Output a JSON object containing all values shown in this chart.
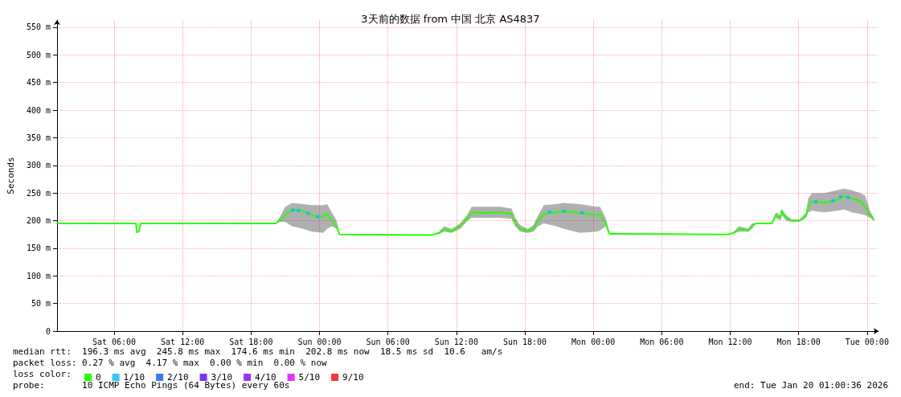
{
  "chart_data": {
    "type": "line",
    "title": "3天前的数据 from 中国 北京 AS4837",
    "ylabel": "Seconds",
    "legend_title": "loss color:",
    "legend": "bottom left",
    "grid": true,
    "marker": "none",
    "xlim": [
      "2026-01-17T01:00",
      "2026-01-20T01:00"
    ],
    "xticks": [
      {
        "value": "2026-01-17T06:00",
        "label": "Sat 06:00"
      },
      {
        "value": "2026-01-17T12:00",
        "label": "Sat 12:00"
      },
      {
        "value": "2026-01-17T18:00",
        "label": "Sat 18:00"
      },
      {
        "value": "2026-01-18T00:00",
        "label": "Sun 00:00"
      },
      {
        "value": "2026-01-18T06:00",
        "label": "Sun 06:00"
      },
      {
        "value": "2026-01-18T12:00",
        "label": "Sun 12:00"
      },
      {
        "value": "2026-01-18T18:00",
        "label": "Sun 18:00"
      },
      {
        "value": "2026-01-19T00:00",
        "label": "Mon 00:00"
      },
      {
        "value": "2026-01-19T06:00",
        "label": "Mon 06:00"
      },
      {
        "value": "2026-01-19T12:00",
        "label": "Mon 12:00"
      },
      {
        "value": "2026-01-19T18:00",
        "label": "Mon 18:00"
      },
      {
        "value": "2026-01-20T00:00",
        "label": "Tue 00:00"
      }
    ],
    "ylim": [
      0,
      563
    ],
    "yticks": [
      0,
      {
        "value": 50,
        "label": "50 m"
      },
      {
        "value": 100,
        "label": "100 m"
      },
      {
        "value": 150,
        "label": "150 m"
      },
      {
        "value": 200,
        "label": "200 m"
      },
      {
        "value": 250,
        "label": "250 m"
      },
      {
        "value": 300,
        "label": "300 m"
      },
      {
        "value": 350,
        "label": "350 m"
      },
      {
        "value": 400,
        "label": "400 m"
      },
      {
        "value": 450,
        "label": "450 m"
      },
      {
        "value": 500,
        "label": "500 m"
      },
      {
        "value": 550,
        "label": "550 m"
      }
    ],
    "series": [
      {
        "name": "0",
        "type": "line",
        "color": "#26ff00",
        "x": [
          "2026-01-17T01:00",
          "2026-01-17T07:55",
          "2026-01-17T08:00",
          "2026-01-17T08:10",
          "2026-01-17T08:20",
          "2026-01-17T20:10",
          "2026-01-17T20:30",
          "2026-01-17T21:00",
          "2026-01-17T21:35",
          "2026-01-17T22:35",
          "2026-01-17T23:20",
          "2026-01-18T00:20",
          "2026-01-18T00:40",
          "2026-01-18T01:05",
          "2026-01-18T01:30",
          "2026-01-18T01:45",
          "2026-01-18T09:50",
          "2026-01-18T10:30",
          "2026-01-18T10:55",
          "2026-01-18T11:35",
          "2026-01-18T12:20",
          "2026-01-18T13:00",
          "2026-01-18T13:20",
          "2026-01-18T14:25",
          "2026-01-18T15:50",
          "2026-01-18T16:50",
          "2026-01-18T17:10",
          "2026-01-18T17:35",
          "2026-01-18T18:15",
          "2026-01-18T18:45",
          "2026-01-18T19:10",
          "2026-01-18T19:40",
          "2026-01-18T20:45",
          "2026-01-18T21:25",
          "2026-01-18T22:50",
          "2026-01-19T00:15",
          "2026-01-19T00:35",
          "2026-01-19T01:05",
          "2026-01-19T01:25",
          "2026-01-19T11:50",
          "2026-01-19T12:20",
          "2026-01-19T12:45",
          "2026-01-19T13:35",
          "2026-01-19T13:55",
          "2026-01-19T14:15",
          "2026-01-19T15:40",
          "2026-01-19T16:00",
          "2026-01-19T16:25",
          "2026-01-19T16:30",
          "2026-01-19T16:55",
          "2026-01-19T17:25",
          "2026-01-19T18:05",
          "2026-01-19T18:40",
          "2026-01-19T18:50",
          "2026-01-19T19:10",
          "2026-01-19T20:15",
          "2026-01-19T21:20",
          "2026-01-19T22:00",
          "2026-01-19T22:40",
          "2026-01-19T23:25",
          "2026-01-19T23:50",
          "2026-01-20T00:15",
          "2026-01-20T00:35"
        ],
        "values": [
          195,
          195,
          179,
          180,
          195,
          195,
          200,
          210,
          220,
          217,
          210,
          206,
          213,
          200,
          190,
          175,
          174,
          178,
          185,
          180,
          190,
          205,
          215,
          214,
          215,
          212,
          195,
          185,
          180,
          185,
          200,
          212,
          215,
          217,
          214,
          210,
          212,
          195,
          176,
          175,
          178,
          185,
          182,
          190,
          195,
          195,
          210,
          205,
          217,
          205,
          200,
          200,
          210,
          225,
          235,
          232,
          237,
          245,
          240,
          235,
          225,
          210,
          202
        ],
        "lower": [
          195,
          195,
          179,
          180,
          195,
          195,
          198,
          198,
          190,
          185,
          180,
          178,
          185,
          190,
          185,
          175,
          174,
          176,
          180,
          178,
          185,
          200,
          205,
          205,
          205,
          203,
          190,
          180,
          178,
          180,
          190,
          195,
          190,
          185,
          178,
          180,
          182,
          190,
          176,
          175,
          176,
          180,
          180,
          185,
          195,
          195,
          205,
          200,
          210,
          200,
          198,
          198,
          205,
          215,
          218,
          215,
          218,
          220,
          215,
          212,
          210,
          205,
          200
        ],
        "upper": [
          195,
          195,
          179,
          180,
          195,
          195,
          205,
          225,
          232,
          230,
          228,
          228,
          230,
          215,
          200,
          175,
          174,
          180,
          190,
          185,
          195,
          212,
          225,
          225,
          225,
          222,
          205,
          192,
          185,
          192,
          210,
          228,
          230,
          232,
          230,
          225,
          225,
          205,
          178,
          175,
          180,
          190,
          186,
          195,
          195,
          195,
          215,
          210,
          222,
          210,
          202,
          202,
          215,
          240,
          250,
          250,
          255,
          258,
          255,
          250,
          245,
          218,
          205
        ]
      },
      {
        "name": "1/10",
        "type": "scatter",
        "color": "#00b8ff",
        "marker": "square",
        "x": [
          "2026-01-17T21:40",
          "2026-01-17T22:10",
          "2026-01-17T23:00",
          "2026-01-17T23:50",
          "2026-01-18T20:10",
          "2026-01-18T21:25",
          "2026-01-18T23:00",
          "2026-01-19T19:30",
          "2026-01-19T21:00",
          "2026-01-19T21:40",
          "2026-01-19T22:20"
        ],
        "values": [
          219,
          218,
          213,
          207,
          216,
          217,
          214,
          234,
          236,
          243,
          242
        ]
      },
      {
        "name": "2/10",
        "type": "scatter",
        "color": "#0059ff"
      },
      {
        "name": "3/10",
        "type": "scatter",
        "color": "#5e00ff"
      },
      {
        "name": "4/10",
        "type": "scatter",
        "color": "#7e00ff"
      },
      {
        "name": "5/10",
        "type": "scatter",
        "color": "#dd00ff"
      },
      {
        "name": "9/10",
        "type": "scatter",
        "color": "#ff0000"
      }
    ],
    "annotations": [
      "median rtt:  196.3 ms avg  245.8 ms max  174.6 ms min  202.8 ms now  18.5 ms sd  10.6   am/s",
      "packet loss: 0.27 % avg  4.17 % max  0.00 % min  0.00 % now",
      "probe:       10 ICMP Echo Pings (64 Bytes) every 60s",
      "end: Tue Jan 20 01:00:36 2026"
    ]
  }
}
